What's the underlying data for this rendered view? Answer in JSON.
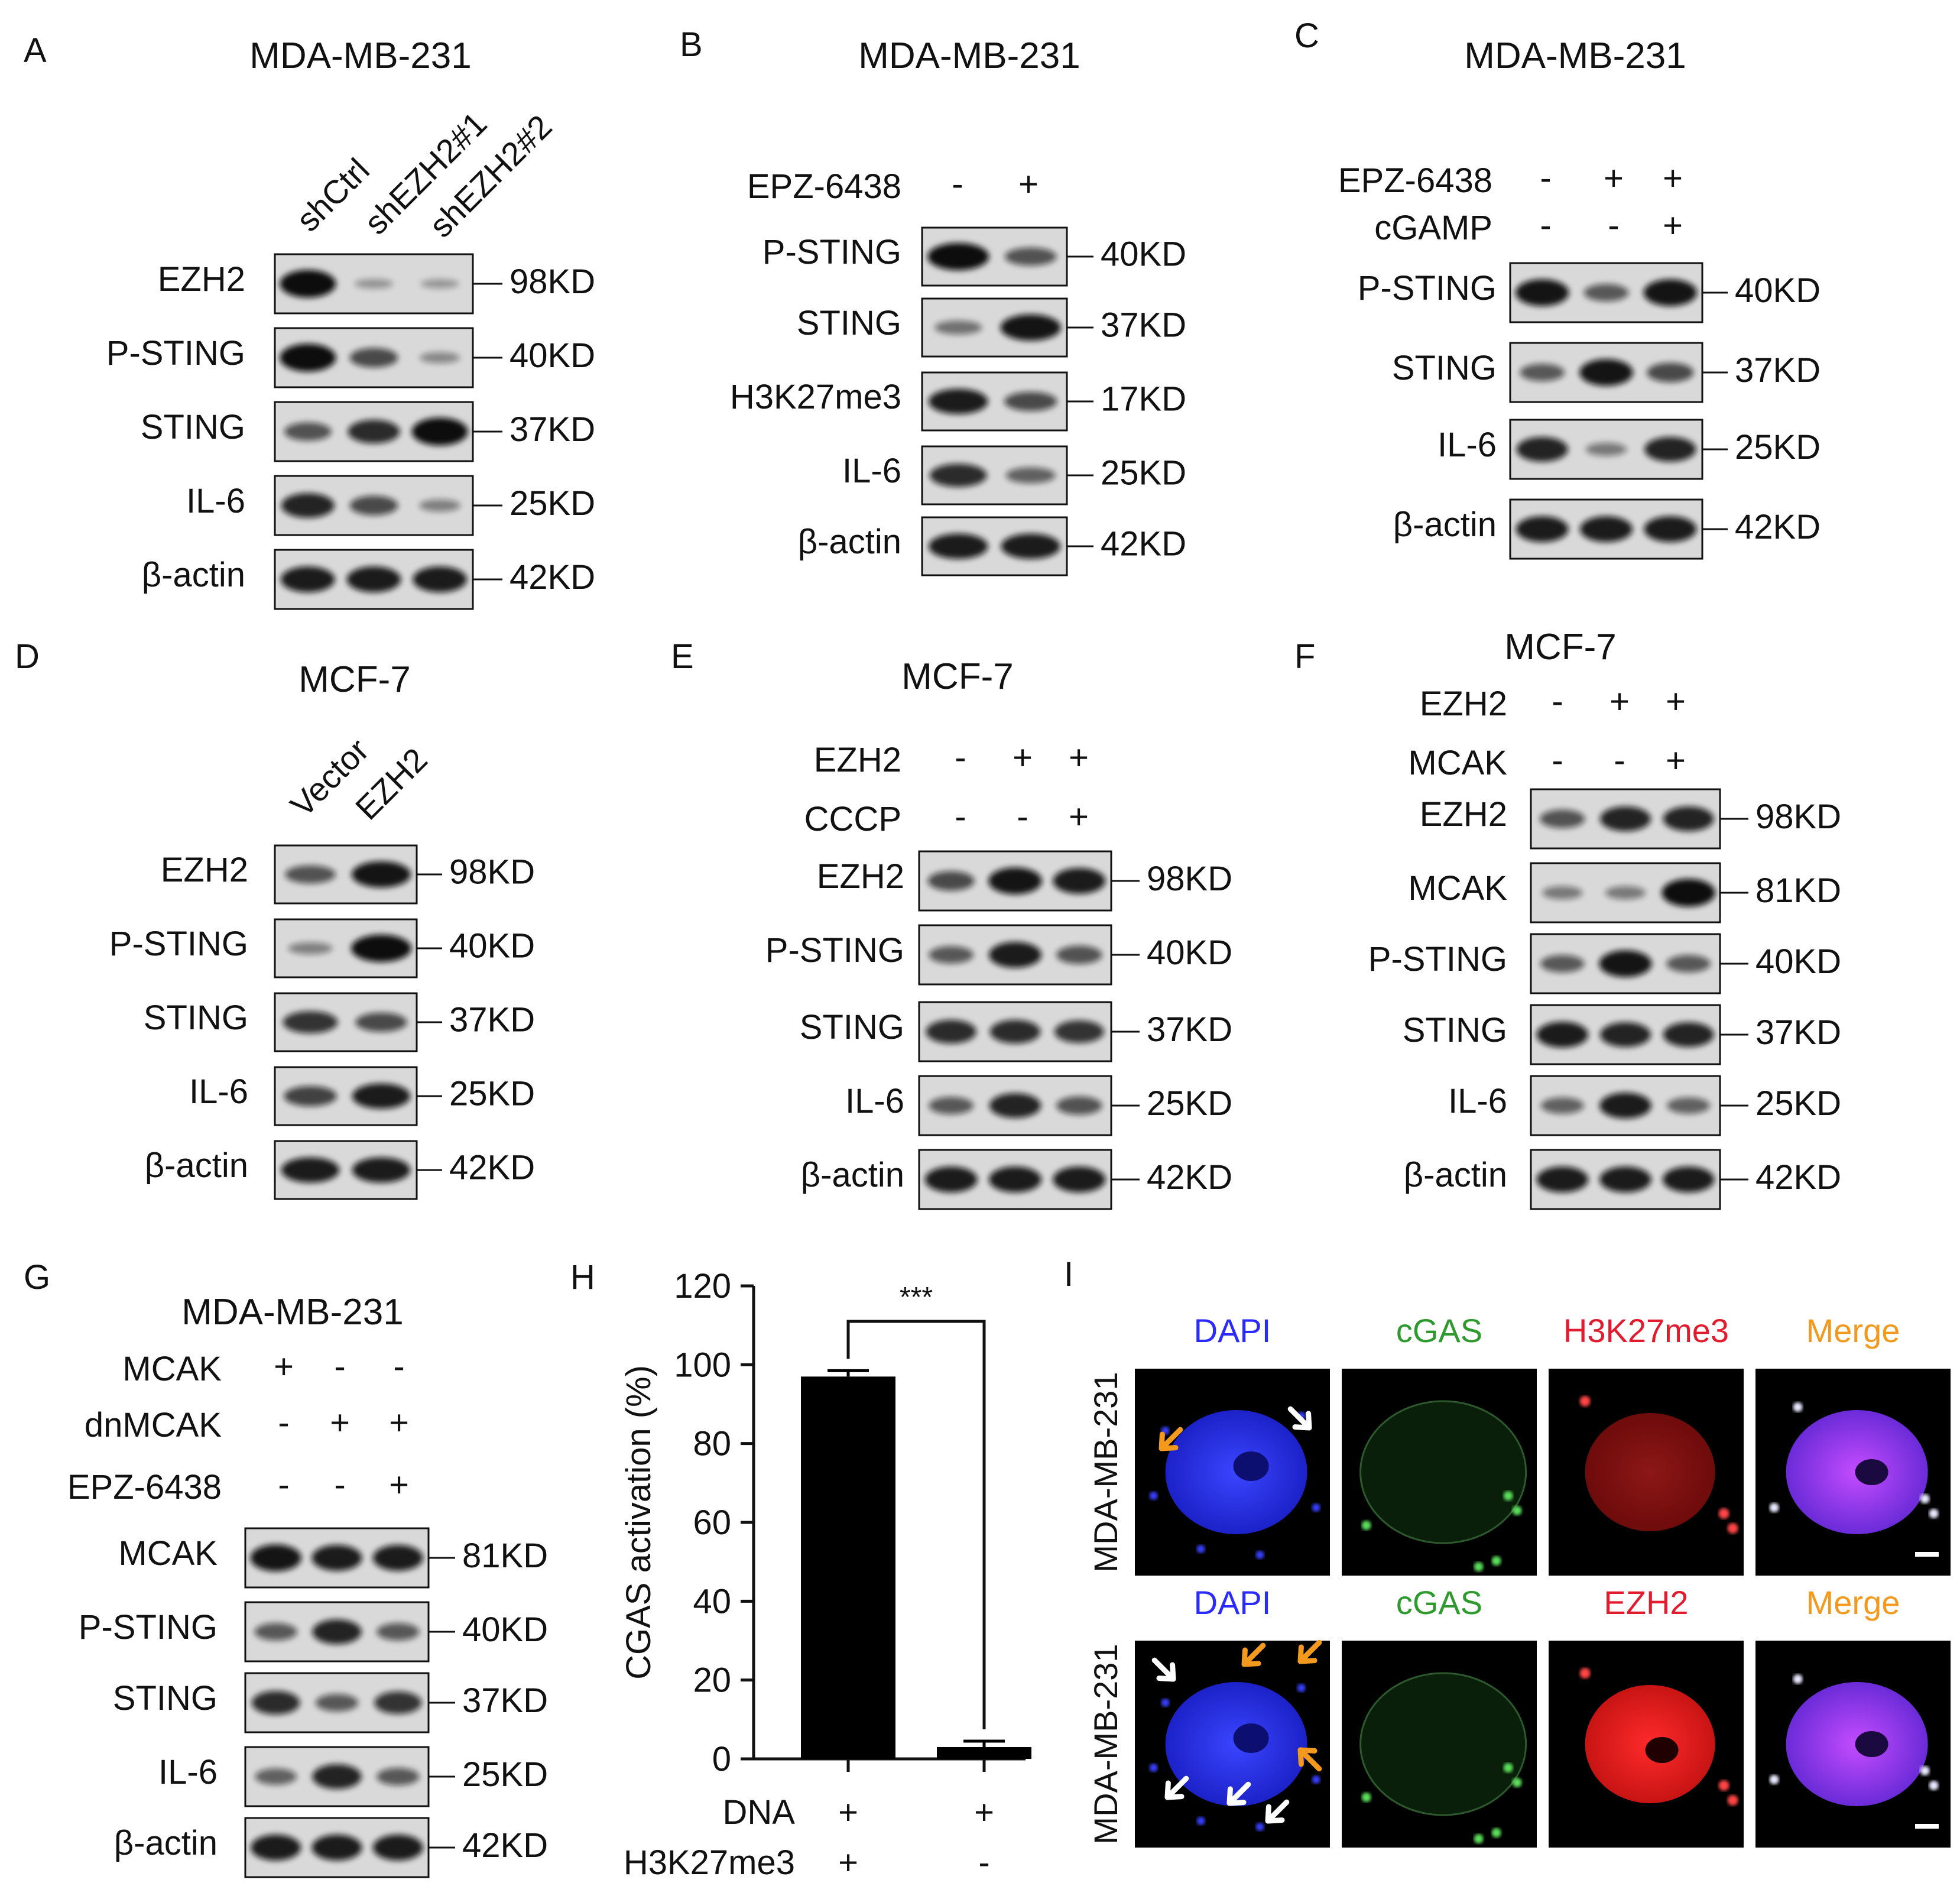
{
  "figure": {
    "panels": [
      {
        "letter": "A",
        "cell_line": "MDA-MB-231",
        "lanes": [
          "shCtrl",
          "shEZH2#1",
          "shEZH2#2"
        ],
        "conditions": [],
        "blots": [
          {
            "protein": "EZH2",
            "mw": "98KD",
            "bands": [
              1.0,
              0.12,
              0.1
            ]
          },
          {
            "protein": "P-STING",
            "mw": "40KD",
            "bands": [
              1.0,
              0.6,
              0.2
            ]
          },
          {
            "protein": "STING",
            "mw": "37KD",
            "bands": [
              0.55,
              0.8,
              1.0
            ]
          },
          {
            "protein": "IL-6",
            "mw": "25KD",
            "bands": [
              0.85,
              0.6,
              0.25
            ]
          },
          {
            "protein": "β-actin",
            "mw": "42KD",
            "bands": [
              0.9,
              0.9,
              0.9
            ]
          }
        ]
      },
      {
        "letter": "B",
        "cell_line": "MDA-MB-231",
        "lanes": [],
        "conditions": [
          {
            "label": "EPZ-6438",
            "signs": [
              "-",
              "+"
            ]
          }
        ],
        "blots": [
          {
            "protein": "P-STING",
            "mw": "40KD",
            "bands": [
              1.0,
              0.55
            ]
          },
          {
            "protein": "STING",
            "mw": "37KD",
            "bands": [
              0.35,
              0.95
            ]
          },
          {
            "protein": "H3K27me3",
            "mw": "17KD",
            "bands": [
              0.9,
              0.6
            ]
          },
          {
            "protein": "IL-6",
            "mw": "25KD",
            "bands": [
              0.8,
              0.45
            ]
          },
          {
            "protein": "β-actin",
            "mw": "42KD",
            "bands": [
              0.9,
              0.9
            ]
          }
        ]
      },
      {
        "letter": "C",
        "cell_line": "MDA-MB-231",
        "lanes": [],
        "conditions": [
          {
            "label": "EPZ-6438",
            "signs": [
              "-",
              "+",
              "+"
            ]
          },
          {
            "label": "cGAMP",
            "signs": [
              "-",
              "-",
              "+"
            ]
          }
        ],
        "blots": [
          {
            "protein": "P-STING",
            "mw": "40KD",
            "bands": [
              0.95,
              0.5,
              0.95
            ]
          },
          {
            "protein": "STING",
            "mw": "37KD",
            "bands": [
              0.5,
              0.95,
              0.6
            ]
          },
          {
            "protein": "IL-6",
            "mw": "25KD",
            "bands": [
              0.85,
              0.3,
              0.85
            ]
          },
          {
            "protein": "β-actin",
            "mw": "42KD",
            "bands": [
              0.9,
              0.9,
              0.9
            ]
          }
        ]
      },
      {
        "letter": "D",
        "cell_line": "MCF-7",
        "lanes": [
          "Vector",
          "EZH2"
        ],
        "conditions": [],
        "blots": [
          {
            "protein": "EZH2",
            "mw": "98KD",
            "bands": [
              0.55,
              0.95
            ]
          },
          {
            "protein": "P-STING",
            "mw": "40KD",
            "bands": [
              0.25,
              1.0
            ]
          },
          {
            "protein": "STING",
            "mw": "37KD",
            "bands": [
              0.75,
              0.6
            ]
          },
          {
            "protein": "IL-6",
            "mw": "25KD",
            "bands": [
              0.65,
              0.9
            ]
          },
          {
            "protein": "β-actin",
            "mw": "42KD",
            "bands": [
              0.9,
              0.9
            ]
          }
        ]
      },
      {
        "letter": "E",
        "cell_line": "MCF-7",
        "lanes": [],
        "conditions": [
          {
            "label": "EZH2",
            "signs": [
              "-",
              "+",
              "+"
            ]
          },
          {
            "label": "CCCP",
            "signs": [
              "-",
              "-",
              "+"
            ]
          }
        ],
        "blots": [
          {
            "protein": "EZH2",
            "mw": "98KD",
            "bands": [
              0.6,
              0.95,
              0.9
            ]
          },
          {
            "protein": "P-STING",
            "mw": "40KD",
            "bands": [
              0.5,
              0.9,
              0.55
            ]
          },
          {
            "protein": "STING",
            "mw": "37KD",
            "bands": [
              0.8,
              0.8,
              0.75
            ]
          },
          {
            "protein": "IL-6",
            "mw": "25KD",
            "bands": [
              0.5,
              0.85,
              0.55
            ]
          },
          {
            "protein": "β-actin",
            "mw": "42KD",
            "bands": [
              0.9,
              0.9,
              0.9
            ]
          }
        ]
      },
      {
        "letter": "F",
        "cell_line": "MCF-7",
        "lanes": [],
        "conditions": [
          {
            "label": "EZH2",
            "signs": [
              "-",
              "+",
              "+"
            ]
          },
          {
            "label": "MCAK",
            "signs": [
              "-",
              "-",
              "+"
            ]
          }
        ],
        "blots": [
          {
            "protein": "EZH2",
            "mw": "98KD",
            "bands": [
              0.55,
              0.85,
              0.85
            ]
          },
          {
            "protein": "MCAK",
            "mw": "81KD",
            "bands": [
              0.3,
              0.3,
              1.0
            ]
          },
          {
            "protein": "P-STING",
            "mw": "40KD",
            "bands": [
              0.5,
              0.95,
              0.5
            ]
          },
          {
            "protein": "STING",
            "mw": "37KD",
            "bands": [
              0.9,
              0.85,
              0.85
            ]
          },
          {
            "protein": "IL-6",
            "mw": "25KD",
            "bands": [
              0.45,
              0.9,
              0.45
            ]
          },
          {
            "protein": "β-actin",
            "mw": "42KD",
            "bands": [
              0.9,
              0.9,
              0.9
            ]
          }
        ]
      },
      {
        "letter": "G",
        "cell_line": "MDA-MB-231",
        "lanes": [],
        "conditions": [
          {
            "label": "MCAK",
            "signs": [
              "+",
              "-",
              "-"
            ]
          },
          {
            "label": "dnMCAK",
            "signs": [
              "-",
              "+",
              "+"
            ]
          },
          {
            "label": "EPZ-6438",
            "signs": [
              "-",
              "-",
              "+"
            ]
          }
        ],
        "blots": [
          {
            "protein": "MCAK",
            "mw": "81KD",
            "bands": [
              0.95,
              0.9,
              0.9
            ]
          },
          {
            "protein": "P-STING",
            "mw": "40KD",
            "bands": [
              0.5,
              0.85,
              0.5
            ]
          },
          {
            "protein": "STING",
            "mw": "37KD",
            "bands": [
              0.8,
              0.5,
              0.75
            ]
          },
          {
            "protein": "IL-6",
            "mw": "25KD",
            "bands": [
              0.45,
              0.85,
              0.5
            ]
          },
          {
            "protein": "β-actin",
            "mw": "42KD",
            "bands": [
              0.9,
              0.9,
              0.9
            ]
          }
        ]
      }
    ],
    "panel_h": {
      "letter": "H",
      "significance": "***",
      "condition_rows": [
        {
          "label": "DNA",
          "signs": [
            "+",
            "+"
          ]
        },
        {
          "label": "H3K27me3",
          "signs": [
            "+",
            "-"
          ]
        }
      ]
    },
    "panel_i": {
      "letter": "I",
      "row_label": "MDA-MB-231",
      "rows": [
        {
          "channels": [
            "DAPI",
            "cGAS",
            "H3K27me3",
            "Merge"
          ]
        },
        {
          "channels": [
            "DAPI",
            "cGAS",
            "EZH2",
            "Merge"
          ]
        }
      ],
      "channel_colors": [
        "#2b2bff",
        "#2e9a2e",
        "#e21b2f",
        "#f39a1e"
      ]
    }
  },
  "chart_data": {
    "type": "bar",
    "categories": [
      "DNA+ H3K27me3+",
      "DNA+ H3K27me3-"
    ],
    "values": [
      97,
      3
    ],
    "errors": [
      1.5,
      1.5
    ],
    "ylabel": "CGAS activation (%)",
    "ylim": [
      0,
      120
    ],
    "yticks": [
      0,
      20,
      40,
      60,
      80,
      100,
      120
    ],
    "annotation": "***"
  }
}
